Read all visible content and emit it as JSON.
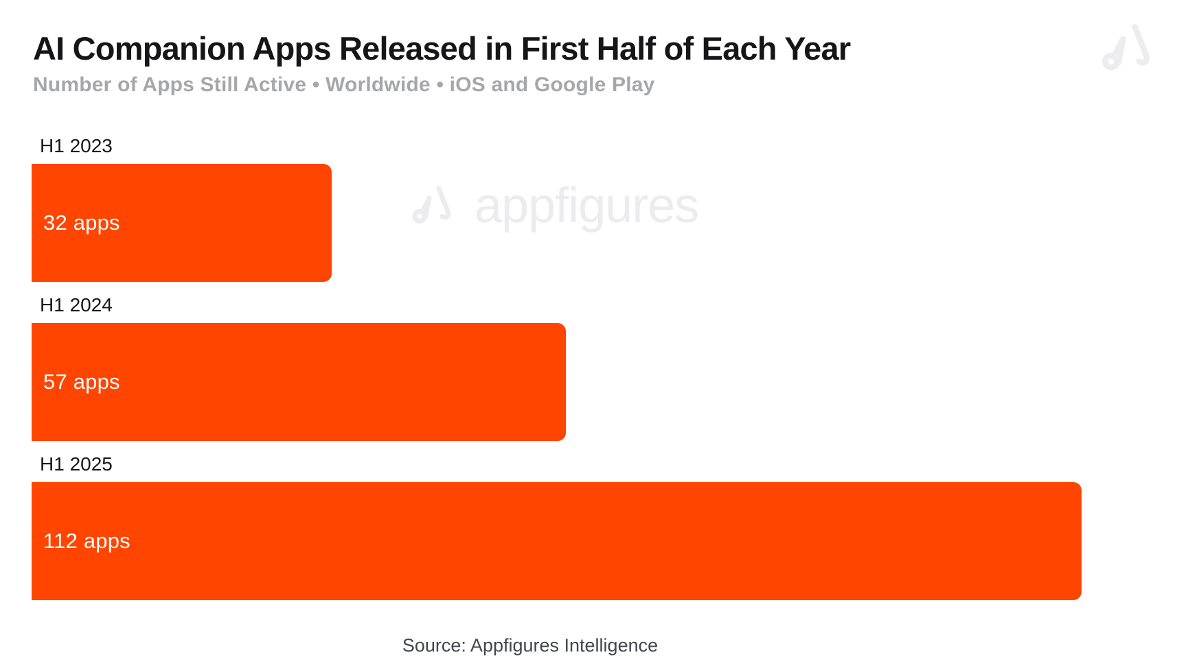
{
  "colors": {
    "bar": "#FF4500",
    "title": "#161618",
    "subtitle": "#A6A7AC",
    "value_label": "#FFFFFF",
    "watermark": "#ECECEE",
    "source_text": "#42464C",
    "background": "#FFFFFF"
  },
  "branding": {
    "corner_icon": "appfigures-logo-icon",
    "watermark_icon": "appfigures-logo-icon",
    "watermark_text": "appfigures"
  },
  "chart_data": {
    "type": "bar",
    "orientation": "horizontal",
    "title": "AI Companion Apps Released in First Half of Each Year",
    "subtitle": "Number of Apps Still Active • Worldwide • iOS and Google Play",
    "categories": [
      "H1 2023",
      "H1 2024",
      "H1 2025"
    ],
    "values": [
      32,
      57,
      112
    ],
    "value_labels": [
      "32 apps",
      "57 apps",
      "112 apps"
    ],
    "series": [
      {
        "name": "Apps still active",
        "values": [
          32,
          57,
          112
        ]
      }
    ],
    "xlabel": "",
    "ylabel": "",
    "xlim": [
      0,
      120
    ],
    "grid": false,
    "legend": false,
    "bar_color": "#FF4500",
    "source": "Source: Appfigures Intelligence"
  }
}
